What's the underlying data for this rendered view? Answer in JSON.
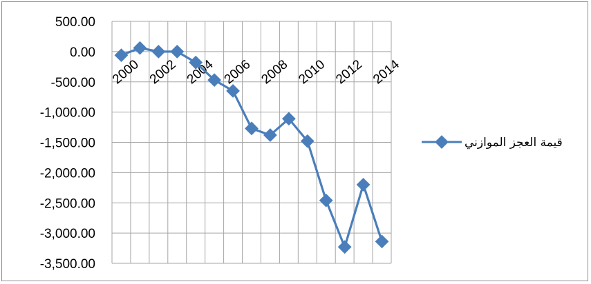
{
  "chart_data": {
    "type": "line",
    "title": "",
    "xlabel": "",
    "ylabel": "",
    "x": [
      2000,
      2001,
      2002,
      2003,
      2004,
      2005,
      2006,
      2007,
      2008,
      2009,
      2010,
      2011,
      2012,
      2013,
      2014
    ],
    "x_tick_labels": [
      "2000",
      "2002",
      "2004",
      "2006",
      "2008",
      "2010",
      "2012",
      "2014"
    ],
    "x_tick_values": [
      2000,
      2002,
      2004,
      2006,
      2008,
      2010,
      2012,
      2014
    ],
    "y_tick_labels": [
      "500.00",
      "0.00",
      "-500.00",
      "-1,000.00",
      "-1,500.00",
      "-2,000.00",
      "-2,500.00",
      "-3,000.00",
      "-3,500.00"
    ],
    "y_tick_values": [
      500,
      0,
      -500,
      -1000,
      -1500,
      -2000,
      -2500,
      -3000,
      -3500
    ],
    "ylim": [
      -3500,
      500
    ],
    "grid": true,
    "legend_position": "right",
    "series": [
      {
        "name": "قيمة العجز الموازني",
        "color": "#4a7ebb",
        "marker": "diamond",
        "values": [
          -60,
          60,
          0,
          0,
          -180,
          -470,
          -650,
          -1270,
          -1380,
          -1110,
          -1480,
          -2460,
          -3230,
          -2200,
          -3140
        ]
      }
    ]
  }
}
